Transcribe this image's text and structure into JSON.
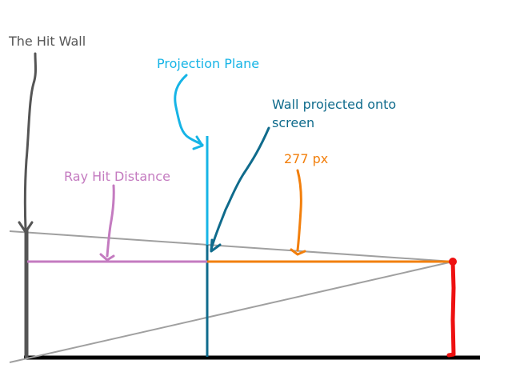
{
  "labels": {
    "hit_wall": "The Hit Wall",
    "projection_plane": "Projection Plane",
    "wall_projected_line1": "Wall projected onto",
    "wall_projected_line2": "screen",
    "distance_value": "277 px",
    "ray_hit_distance": "Ray Hit Distance"
  },
  "colors": {
    "hit_wall": "#555555",
    "projection_plane": "#16b4e6",
    "wall_projected": "#0f6b8c",
    "distance": "#f27f0c",
    "ray_hit_distance": "#c47bc0",
    "rays": "#a0a0a0",
    "ground": "#000000",
    "player": "#ee1111"
  }
}
